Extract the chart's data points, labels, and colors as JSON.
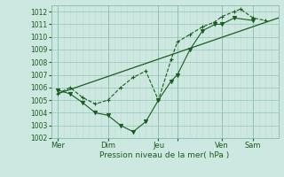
{
  "bg_color": "#cce8e0",
  "grid_color_major": "#88bbaa",
  "grid_color_minor": "#bbddd5",
  "line_color": "#1a5c20",
  "xlabel": "Pression niveau de la mer( hPa )",
  "ylim": [
    1002,
    1012.5
  ],
  "yticks": [
    1002,
    1003,
    1004,
    1005,
    1006,
    1007,
    1008,
    1009,
    1010,
    1011,
    1012
  ],
  "xlim": [
    0,
    216
  ],
  "xtick_positions": [
    6,
    54,
    102,
    120,
    162,
    192
  ],
  "xtick_labels": [
    "Mer",
    "Dim",
    "Jeu",
    "",
    "Ven",
    "Sam"
  ],
  "vline_positions": [
    6,
    54,
    102,
    120,
    162,
    192
  ],
  "series1_trend": {
    "x": [
      6,
      216
    ],
    "y": [
      1005.5,
      1011.5
    ],
    "lw": 0.9
  },
  "series2_dotted": {
    "x": [
      6,
      18,
      30,
      42,
      54,
      66,
      78,
      90,
      102,
      114,
      120,
      132,
      144,
      156,
      162,
      174,
      180,
      192,
      204
    ],
    "y": [
      1005.5,
      1006.0,
      1005.2,
      1004.7,
      1005.0,
      1006.0,
      1006.8,
      1007.3,
      1005.0,
      1008.2,
      1009.6,
      1010.2,
      1010.8,
      1011.2,
      1011.6,
      1012.0,
      1012.2,
      1011.5,
      1011.3
    ],
    "lw": 0.8,
    "marker": "+"
  },
  "series3_v": {
    "x": [
      6,
      18,
      30,
      42,
      54,
      66,
      78,
      90,
      102,
      114,
      120,
      132,
      144,
      156,
      162,
      174,
      192
    ],
    "y": [
      1005.8,
      1005.5,
      1004.8,
      1004.0,
      1003.8,
      1003.0,
      1002.5,
      1003.3,
      1005.0,
      1006.5,
      1007.0,
      1009.0,
      1010.5,
      1011.0,
      1011.0,
      1011.5,
      1011.3
    ],
    "lw": 0.8,
    "marker": "v"
  }
}
